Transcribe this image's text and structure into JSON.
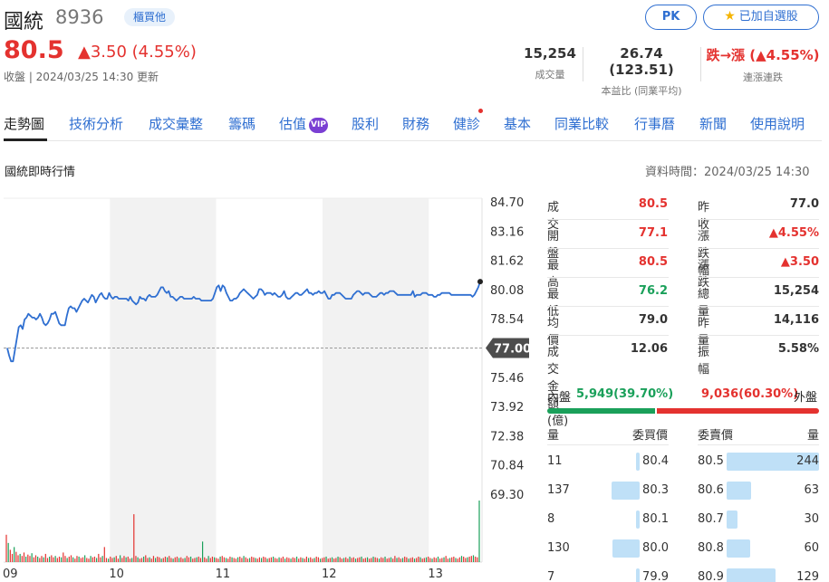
{
  "stock": {
    "name": "國統",
    "code": "8936",
    "market": "櫃買他",
    "price": "80.5",
    "change": "▲3.50 (4.55%)",
    "status": "收盤 | 2024/03/25 14:30 更新"
  },
  "buttons": {
    "pk": "PK",
    "watchlist": "已加自選股"
  },
  "stats": [
    {
      "value": "15,254",
      "label": "成交量"
    },
    {
      "value": "26.74 (123.51)",
      "label": "本益比 (同業平均)"
    },
    {
      "value": "跌→漲 (▲4.55%)",
      "label": "連漲連跌"
    }
  ],
  "tabs": [
    "走勢圖",
    "技術分析",
    "成交彙整",
    "籌碼",
    "估值",
    "股利",
    "財務",
    "健診",
    "基本",
    "同業比較",
    "行事曆",
    "新聞",
    "使用說明"
  ],
  "vip_label": "VIP",
  "section_title": "國統即時行情",
  "data_time": "資料時間：2024/03/25 14:30",
  "quote": {
    "left": [
      {
        "label": "成交",
        "value": "80.5",
        "color": "#e4322f"
      },
      {
        "label": "開盤",
        "value": "77.1",
        "color": "#e4322f"
      },
      {
        "label": "最高",
        "value": "80.5",
        "color": "#e4322f"
      },
      {
        "label": "最低",
        "value": "76.2",
        "color": "#1aa05a"
      },
      {
        "label": "均價",
        "value": "79.0",
        "color": "#333333"
      },
      {
        "label": "成交金額(億)",
        "value": "12.06",
        "color": "#333333"
      }
    ],
    "right": [
      {
        "label": "昨收",
        "value": "77.0",
        "color": "#333333"
      },
      {
        "label": "漲跌幅",
        "value": "▲4.55%",
        "color": "#e4322f"
      },
      {
        "label": "漲跌",
        "value": "▲3.50",
        "color": "#e4322f"
      },
      {
        "label": "總量",
        "value": "15,254",
        "color": "#333333"
      },
      {
        "label": "昨量",
        "value": "14,116",
        "color": "#333333"
      },
      {
        "label": "振幅",
        "value": "5.58%",
        "color": "#333333"
      }
    ]
  },
  "inner_outer": {
    "inner_label": "內盤",
    "inner_value": "5,949(39.70%)",
    "outer_value": "9,036(60.30%)",
    "outer_label": "外盤",
    "inner_ratio": 0.397
  },
  "order_book": {
    "headers": {
      "bid_qty": "量",
      "bid_price": "委買價",
      "ask_price": "委賣價",
      "ask_qty": "量"
    },
    "bids": [
      {
        "qty": "11",
        "price": "80.4",
        "ratio": 0.03
      },
      {
        "qty": "137",
        "price": "80.3",
        "ratio": 0.56
      },
      {
        "qty": "8",
        "price": "80.1",
        "ratio": 0.03
      },
      {
        "qty": "130",
        "price": "80.0",
        "ratio": 0.53
      },
      {
        "qty": "7",
        "price": "79.9",
        "ratio": 0.03
      }
    ],
    "asks": [
      {
        "price": "80.5",
        "qty": "244",
        "ratio": 1.0
      },
      {
        "price": "80.6",
        "qty": "63",
        "ratio": 0.26
      },
      {
        "price": "80.7",
        "qty": "30",
        "ratio": 0.12
      },
      {
        "price": "80.8",
        "qty": "60",
        "ratio": 0.25
      },
      {
        "price": "80.9",
        "qty": "129",
        "ratio": 0.53
      }
    ]
  },
  "chart_data": {
    "type": "line",
    "y_ticks": [
      "84.70",
      "83.16",
      "81.62",
      "80.08",
      "78.54",
      "77.00",
      "75.46",
      "73.92",
      "72.38",
      "70.84",
      "69.30"
    ],
    "ylim": [
      69.3,
      84.7
    ],
    "x_ticks": [
      "09",
      "10",
      "11",
      "12",
      "13"
    ],
    "reference_price": 77.0,
    "reference_label": "77.00",
    "series": [
      {
        "values": [
          77.0,
          76.6,
          76.3,
          76.3,
          76.9,
          77.5,
          78.1,
          78.2,
          78.0,
          78.5,
          78.6,
          78.8,
          78.7,
          78.6,
          78.6,
          78.5,
          78.6,
          78.8,
          78.6,
          78.3,
          78.2,
          78.3,
          78.5,
          78.8,
          78.8,
          78.9,
          78.6,
          78.3,
          78.2,
          78.2,
          78.2,
          78.7,
          79.1,
          79.2,
          79.1,
          79.1,
          78.9,
          79.1,
          79.3,
          79.5,
          79.6,
          79.5,
          79.4,
          79.6,
          79.8,
          79.7,
          79.4,
          79.6,
          79.8,
          79.9,
          79.7,
          79.6,
          79.6,
          79.9,
          79.7,
          79.6,
          79.7,
          79.7,
          79.6,
          79.6,
          79.6,
          79.6,
          79.6,
          79.5,
          79.7,
          79.5,
          79.4,
          79.3,
          79.4,
          79.7,
          79.6,
          79.6,
          79.5,
          79.7,
          79.8,
          79.7,
          79.7,
          79.7,
          79.8,
          80.0,
          80.2,
          80.2,
          80.0,
          79.9,
          80.0,
          79.7,
          79.7,
          79.6,
          79.5,
          79.6,
          79.7,
          79.7,
          79.6,
          79.6,
          79.6,
          79.6,
          79.6,
          79.7,
          79.6,
          79.6,
          79.6,
          79.5,
          79.5,
          79.5,
          79.5,
          79.5,
          79.5,
          79.6,
          79.9,
          80.2,
          80.3,
          80.0,
          80.3,
          80.2,
          79.9,
          79.7,
          79.5,
          79.5,
          79.6,
          79.6,
          79.7,
          79.9,
          80.0,
          80.1,
          80.0,
          79.9,
          79.8,
          79.7,
          79.6,
          79.7,
          79.8,
          80.1,
          80.1,
          80.0,
          79.8,
          79.9,
          79.9,
          79.9,
          79.8,
          79.9,
          79.8,
          79.7,
          79.7,
          79.8,
          80.0,
          79.7,
          79.6,
          79.6,
          79.7,
          79.8,
          79.9,
          79.9,
          79.8,
          79.8,
          79.9,
          80.0,
          80.1,
          79.9,
          79.9,
          79.8,
          79.9,
          79.9,
          80.0,
          79.9,
          79.9,
          80.0,
          79.8,
          79.6,
          79.6,
          79.8,
          79.8,
          79.9,
          79.9,
          79.9,
          79.8,
          79.7,
          79.6,
          79.6,
          79.6,
          79.6,
          79.8,
          79.9,
          80.0,
          80.0,
          79.9,
          79.8,
          79.9,
          79.9,
          79.9,
          79.8,
          79.7,
          79.7,
          79.7,
          79.8,
          79.9,
          79.9,
          79.8,
          79.9,
          79.9,
          80.0,
          80.0,
          80.0,
          79.9,
          79.8,
          79.8,
          79.8,
          79.8,
          79.8,
          79.8,
          79.8,
          79.8,
          80.0,
          79.7,
          79.8,
          79.8,
          79.8,
          79.9,
          79.9,
          79.9,
          79.8,
          79.8,
          79.8,
          79.7,
          79.7,
          79.8,
          79.8,
          79.9,
          79.9,
          79.9,
          79.9,
          79.9,
          79.8,
          79.8,
          79.8,
          79.8,
          79.8,
          79.8,
          79.8,
          79.8,
          79.8,
          79.8,
          79.8,
          79.7,
          79.8,
          80.0,
          80.2,
          80.5
        ]
      }
    ],
    "volume": [
      40,
      28,
      18,
      12,
      22,
      15,
      10,
      12,
      9,
      14,
      8,
      11,
      9,
      13,
      7,
      10,
      8,
      6,
      9,
      7,
      12,
      6,
      8,
      10,
      7,
      9,
      6,
      8,
      7,
      14,
      9,
      6,
      8,
      10,
      7,
      5,
      9,
      8,
      6,
      7,
      10,
      6,
      5,
      9,
      7,
      8,
      6,
      12,
      7,
      9,
      22,
      6,
      5,
      8,
      6,
      7,
      9,
      5,
      10,
      6,
      9,
      7,
      8,
      5,
      6,
      70,
      9,
      7,
      5,
      6,
      8,
      10,
      6,
      7,
      5,
      9,
      6,
      8,
      7,
      5,
      6,
      8,
      7,
      9,
      6,
      5,
      7,
      8,
      6,
      7,
      5,
      6,
      9,
      7,
      8,
      5,
      6,
      7,
      8,
      6,
      30,
      7,
      5,
      9,
      6,
      8,
      7,
      6,
      5,
      8,
      9,
      7,
      6,
      5,
      8,
      7,
      6,
      5,
      7,
      8,
      6,
      9,
      7,
      5,
      6,
      8,
      7,
      6,
      5,
      7,
      6,
      8,
      7,
      5,
      6,
      7,
      8,
      6,
      5,
      7,
      6,
      8,
      5,
      7,
      6,
      5,
      7,
      6,
      8,
      5,
      7,
      6,
      5,
      8,
      6,
      7,
      5,
      6,
      8,
      7,
      5,
      6,
      7,
      8,
      5,
      6,
      7,
      5,
      6,
      8,
      7,
      5,
      6,
      7,
      5,
      8,
      6,
      7,
      5,
      6,
      7,
      8,
      5,
      6,
      7,
      5,
      6,
      8,
      7,
      6,
      5,
      7,
      6,
      8,
      5,
      6,
      7,
      5,
      9,
      6,
      7,
      5,
      6,
      8,
      7,
      5,
      6,
      7,
      5,
      6,
      8,
      7,
      5,
      6,
      7,
      8,
      6,
      5,
      7,
      6,
      8,
      5,
      6,
      7,
      9,
      5,
      6,
      7,
      8,
      6,
      5,
      7,
      9,
      8,
      6,
      7,
      8,
      9,
      10,
      8,
      7,
      90
    ]
  },
  "colors": {
    "up": "#e4322f",
    "down": "#1aa05a",
    "line": "#2f6fd1",
    "link": "#2f6fd1"
  }
}
